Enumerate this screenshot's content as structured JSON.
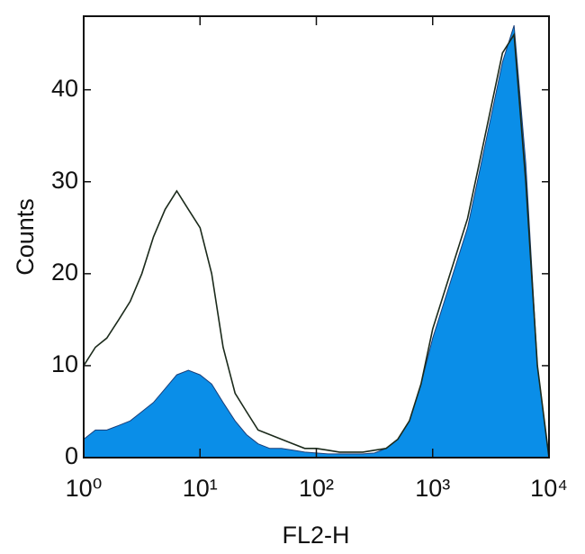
{
  "chart_data": {
    "type": "area",
    "x_label": "FL2-H",
    "y_label": "Counts",
    "xscale": "log",
    "x": [
      1,
      1.26,
      1.58,
      2,
      2.51,
      3.16,
      3.98,
      5.01,
      6.31,
      7.94,
      10,
      12.6,
      15.8,
      20,
      25.1,
      31.6,
      39.8,
      50.1,
      63.1,
      79.4,
      100,
      126,
      158,
      200,
      251,
      316,
      398,
      501,
      631,
      794,
      1000,
      1259,
      1585,
      1995,
      2512,
      3162,
      3981,
      5012,
      6310,
      7943,
      10000
    ],
    "series": [
      {
        "color": "#0a8ee8",
        "filled": true,
        "values": [
          2,
          3,
          3,
          3.5,
          4,
          5,
          6,
          7.5,
          9,
          9.5,
          9,
          8,
          6,
          4,
          2.5,
          1.5,
          1,
          1,
          0.8,
          0.6,
          0.5,
          0.4,
          0.4,
          0.4,
          0.4,
          0.5,
          1,
          2,
          4,
          8,
          13,
          17,
          21,
          25,
          31,
          37,
          43,
          47,
          32,
          10,
          0
        ]
      },
      {
        "color": "#1b2a1b",
        "filled": false,
        "values": [
          10,
          12,
          13,
          15,
          17,
          20,
          24,
          27,
          29,
          27,
          25,
          20,
          12,
          7,
          5,
          3,
          2.5,
          2,
          1.5,
          1,
          1,
          0.8,
          0.6,
          0.6,
          0.6,
          0.8,
          1,
          2,
          4,
          8,
          14,
          18,
          22,
          26,
          32,
          38,
          44,
          46,
          30,
          10,
          0
        ]
      }
    ],
    "xlim": [
      1,
      10000
    ],
    "xticks": [
      {
        "value": 1,
        "label": "10⁰"
      },
      {
        "value": 10,
        "label": "10¹"
      },
      {
        "value": 100,
        "label": "10²"
      },
      {
        "value": 1000,
        "label": "10³"
      },
      {
        "value": 10000,
        "label": "10⁴"
      }
    ],
    "ylim": [
      0,
      48
    ],
    "yticks": [
      0,
      10,
      20,
      30,
      40
    ]
  }
}
